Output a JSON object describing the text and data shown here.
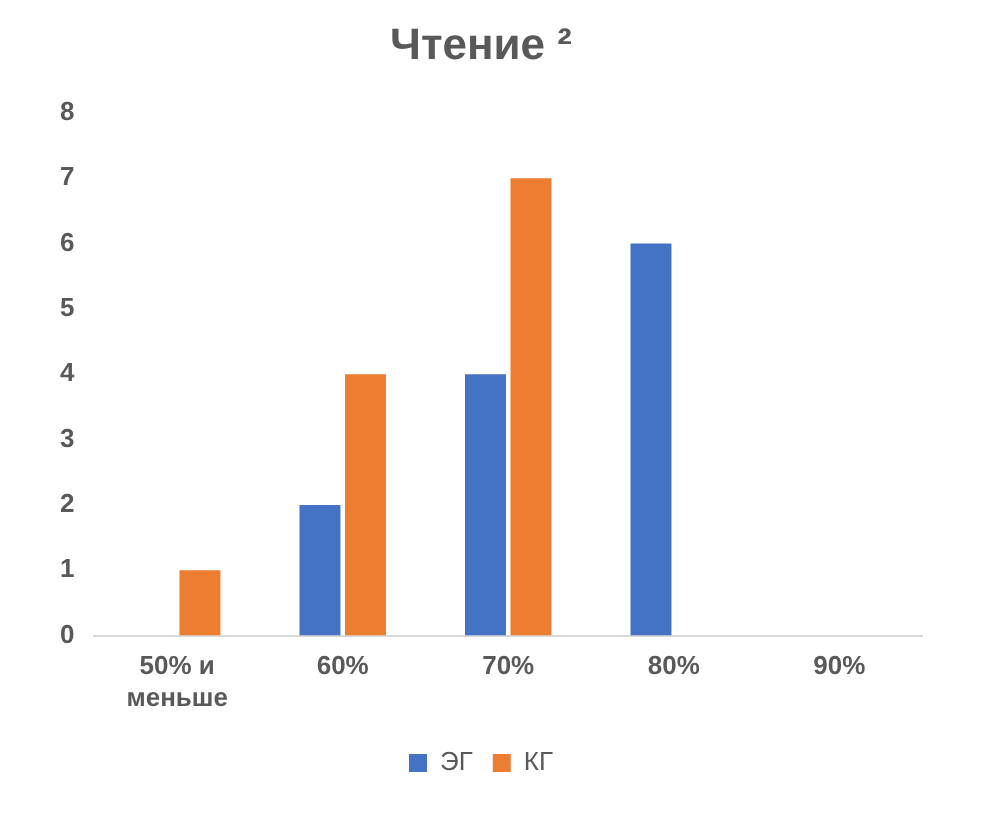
{
  "chart_data": {
    "type": "bar",
    "title": "Чтение ²",
    "categories": [
      "50% и меньше",
      "60%",
      "70%",
      "80%",
      "90%"
    ],
    "series": [
      {
        "name": "ЭГ",
        "color": "#4472c4",
        "values": [
          0,
          2,
          4,
          6,
          0
        ]
      },
      {
        "name": "КГ",
        "color": "#ed7d31",
        "values": [
          1,
          4,
          7,
          0,
          0
        ]
      }
    ],
    "ylim": [
      0,
      8
    ],
    "yticks": [
      0,
      1,
      2,
      3,
      4,
      5,
      6,
      7,
      8
    ],
    "grid": false,
    "legend": "bottom"
  }
}
